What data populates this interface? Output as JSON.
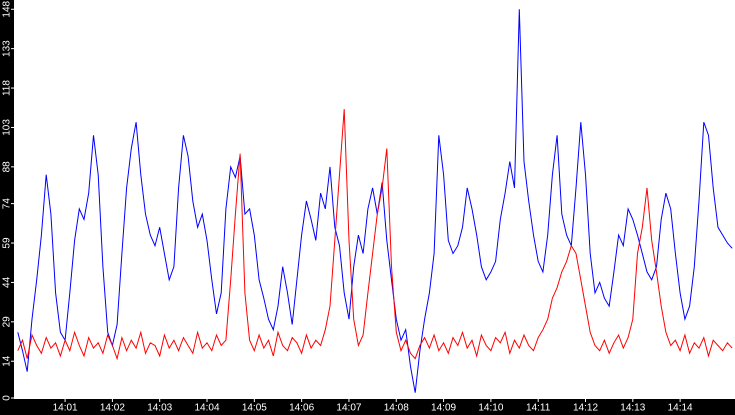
{
  "chart_data": {
    "type": "line",
    "x": [
      0,
      0.1,
      0.2,
      0.3,
      0.4,
      0.5,
      0.6,
      0.7,
      0.8,
      0.9,
      1,
      1.1,
      1.2,
      1.3,
      1.4,
      1.5,
      1.6,
      1.7,
      1.8,
      1.9,
      2,
      2.1,
      2.2,
      2.3,
      2.4,
      2.5,
      2.6,
      2.7,
      2.8,
      2.9,
      3,
      3.1,
      3.2,
      3.3,
      3.4,
      3.5,
      3.6,
      3.7,
      3.8,
      3.9,
      4,
      4.1,
      4.2,
      4.3,
      4.4,
      4.5,
      4.6,
      4.7,
      4.8,
      4.9,
      5,
      5.1,
      5.2,
      5.3,
      5.4,
      5.5,
      5.6,
      5.7,
      5.8,
      5.9,
      6,
      6.1,
      6.2,
      6.3,
      6.4,
      6.5,
      6.6,
      6.7,
      6.8,
      6.9,
      7,
      7.1,
      7.2,
      7.3,
      7.4,
      7.5,
      7.6,
      7.7,
      7.8,
      7.9,
      8,
      8.1,
      8.2,
      8.3,
      8.4,
      8.5,
      8.6,
      8.7,
      8.8,
      8.9,
      9,
      9.1,
      9.2,
      9.3,
      9.4,
      9.5,
      9.6,
      9.7,
      9.8,
      9.9,
      10,
      10.1,
      10.2,
      10.3,
      10.4,
      10.5,
      10.6,
      10.7,
      10.8,
      10.9,
      11,
      11.1,
      11.2,
      11.3,
      11.4,
      11.5,
      11.6,
      11.7,
      11.8,
      11.9,
      12,
      12.1,
      12.2,
      12.3,
      12.4,
      12.5,
      12.6,
      12.7,
      12.8,
      12.9,
      13,
      13.1,
      13.2,
      13.3,
      13.4,
      13.5,
      13.6,
      13.7,
      13.8,
      13.9,
      14,
      14.1,
      14.2,
      14.3,
      14.4,
      14.5,
      14.6,
      14.7,
      14.8,
      14.9,
      15,
      15.1
    ],
    "series": [
      {
        "color": "#0000ff",
        "values": [
          25,
          18,
          10,
          30,
          45,
          62,
          85,
          70,
          40,
          25,
          22,
          40,
          60,
          72,
          68,
          78,
          100,
          85,
          50,
          25,
          20,
          28,
          55,
          80,
          95,
          105,
          85,
          70,
          62,
          58,
          65,
          55,
          45,
          50,
          80,
          100,
          92,
          75,
          65,
          70,
          60,
          45,
          32,
          40,
          72,
          88,
          84,
          92,
          70,
          72,
          62,
          45,
          38,
          30,
          26,
          35,
          50,
          40,
          28,
          45,
          62,
          75,
          68,
          60,
          78,
          72,
          88,
          65,
          58,
          40,
          30,
          50,
          62,
          55,
          72,
          80,
          70,
          82,
          60,
          45,
          30,
          22,
          26,
          12,
          2,
          18,
          30,
          40,
          55,
          100,
          85,
          60,
          55,
          58,
          65,
          80,
          72,
          62,
          50,
          45,
          48,
          52,
          68,
          78,
          90,
          80,
          148,
          90,
          75,
          62,
          52,
          48,
          62,
          85,
          100,
          70,
          62,
          58,
          80,
          105,
          85,
          55,
          40,
          44,
          38,
          35,
          48,
          62,
          58,
          72,
          68,
          62,
          55,
          48,
          45,
          50,
          68,
          78,
          72,
          55,
          40,
          30,
          35,
          50,
          75,
          105,
          100,
          80,
          65,
          62,
          59,
          57
        ]
      },
      {
        "color": "#ff0000",
        "values": [
          18,
          22,
          15,
          24,
          20,
          17,
          23,
          19,
          21,
          16,
          22,
          18,
          25,
          20,
          16,
          23,
          19,
          21,
          17,
          24,
          20,
          15,
          23,
          18,
          22,
          19,
          25,
          17,
          21,
          20,
          16,
          24,
          19,
          22,
          18,
          23,
          20,
          17,
          25,
          19,
          21,
          18,
          24,
          20,
          22,
          45,
          70,
          93,
          40,
          22,
          18,
          24,
          19,
          22,
          16,
          25,
          20,
          18,
          23,
          21,
          17,
          24,
          19,
          22,
          20,
          26,
          35,
          60,
          85,
          110,
          60,
          30,
          20,
          24,
          40,
          55,
          70,
          80,
          95,
          50,
          25,
          18,
          22,
          17,
          15,
          20,
          23,
          19,
          24,
          18,
          21,
          17,
          23,
          20,
          25,
          19,
          22,
          16,
          24,
          20,
          18,
          23,
          21,
          25,
          17,
          22,
          19,
          24,
          20,
          18,
          23,
          26,
          30,
          38,
          42,
          48,
          52,
          58,
          55,
          45,
          35,
          25,
          20,
          18,
          22,
          17,
          21,
          24,
          19,
          23,
          30,
          55,
          65,
          80,
          60,
          48,
          35,
          25,
          20,
          22,
          18,
          24,
          17,
          21,
          19,
          23,
          16,
          22,
          20,
          18,
          21,
          19
        ]
      }
    ],
    "xlim": [
      -0.08,
      15.16
    ],
    "xticks": [
      {
        "value": 1,
        "label": "14:01"
      },
      {
        "value": 2,
        "label": "14:02"
      },
      {
        "value": 3,
        "label": "14:03"
      },
      {
        "value": 4,
        "label": "14:04"
      },
      {
        "value": 5,
        "label": "14:05"
      },
      {
        "value": 6,
        "label": "14:06"
      },
      {
        "value": 7,
        "label": "14:07"
      },
      {
        "value": 8,
        "label": "14:08"
      },
      {
        "value": 9,
        "label": "14:09"
      },
      {
        "value": 10,
        "label": "14:10"
      },
      {
        "value": 11,
        "label": "14:11"
      },
      {
        "value": 12,
        "label": "14:12"
      },
      {
        "value": 13,
        "label": "14:13"
      },
      {
        "value": 14,
        "label": "14:14"
      }
    ],
    "ylim": [
      0,
      150
    ],
    "yticks": [
      0,
      14,
      29,
      44,
      59,
      74,
      88,
      103,
      118,
      133,
      148
    ]
  }
}
